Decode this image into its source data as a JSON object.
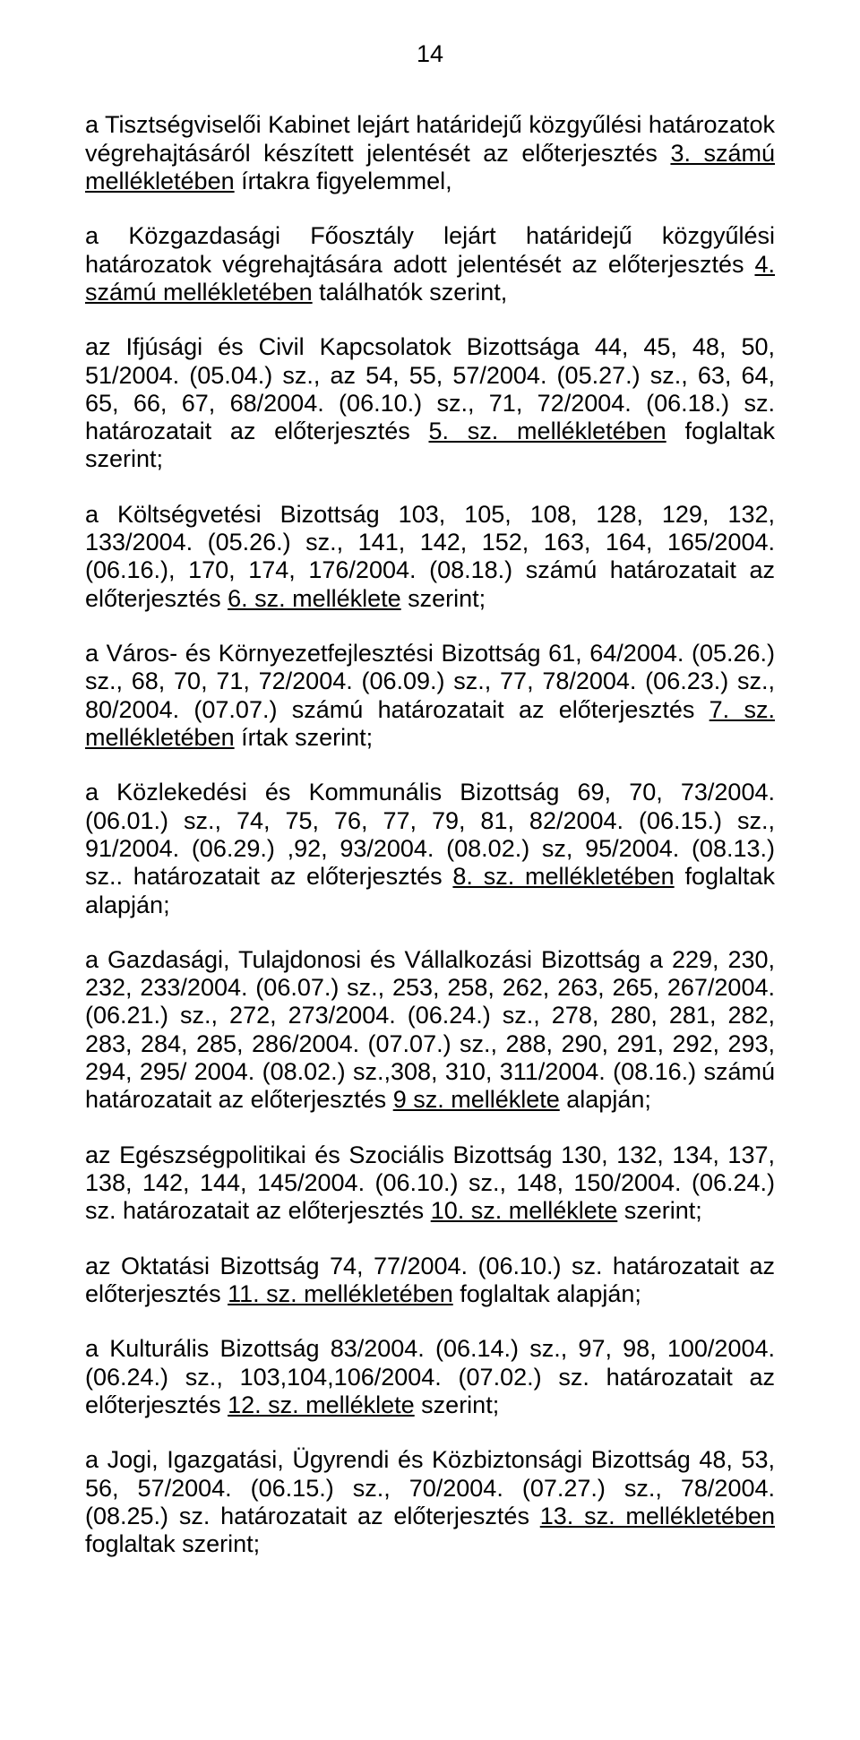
{
  "page_number": "14",
  "paragraphs": {
    "p1": {
      "t1": "a Tisztségviselői Kabinet lejárt határidejű közgyűlési határozatok végrehajtásáról készített jelentését az előterjesztés ",
      "u1": "3. számú mellékletében",
      "t2": " írtakra figyelemmel,"
    },
    "p2": {
      "t1": "a Közgazdasági Főosztály lejárt határidejű közgyűlési határozatok végrehajtására adott jelentését az előterjesztés ",
      "u1": "4. számú mellékletében",
      "t2": " találhatók szerint,"
    },
    "p3": {
      "t1": "az Ifjúsági és Civil Kapcsolatok Bizottsága 44, 45, 48, 50, 51/2004. (05.04.) sz., az 54, 55, 57/2004. (05.27.) sz., 63, 64, 65, 66, 67, 68/2004. (06.10.) sz., 71, 72/2004. (06.18.) sz. határozatait az előterjesztés ",
      "u1": "5. sz. mellékletében",
      "t2": " foglaltak szerint;"
    },
    "p4": {
      "t1": "a Költségvetési Bizottság 103, 105, 108, 128, 129, 132, 133/2004. (05.26.) sz., 141, 142, 152, 163, 164, 165/2004. (06.16.), 170, 174, 176/2004. (08.18.) számú határozatait az előterjesztés ",
      "u1": "6. sz. melléklete",
      "t2": " szerint;"
    },
    "p5": {
      "t1": "a Város- és Környezetfejlesztési Bizottság 61, 64/2004. (05.26.) sz., 68, 70, 71, 72/2004. (06.09.) sz., 77, 78/2004. (06.23.) sz., 80/2004. (07.07.) számú határozatait az előterjesztés ",
      "u1": "7. sz. mellékletében",
      "t2": " írtak szerint;"
    },
    "p6": {
      "t1": "a Közlekedési és Kommunális Bizottság 69, 70, 73/2004. (06.01.) sz., 74, 75, 76, 77, 79, 81, 82/2004. (06.15.) sz., 91/2004. (06.29.) ,92, 93/2004. (08.02.) sz, 95/2004. (08.13.) sz.. határozatait az előterjesztés ",
      "u1": "8. sz. mellékletében",
      "t2": " foglaltak alapján;"
    },
    "p7": {
      "t1": "a Gazdasági, Tulajdonosi és Vállalkozási Bizottság a 229, 230, 232, 233/2004. (06.07.) sz., 253, 258, 262, 263, 265, 267/2004. (06.21.) sz., 272, 273/2004. (06.24.) sz., 278, 280, 281, 282, 283, 284, 285, 286/2004. (07.07.) sz., 288, 290, 291, 292, 293, 294, 295/ 2004. (08.02.) sz.,308, 310, 311/2004. (08.16.) számú határozatait az előterjesztés ",
      "u1": "9 sz. melléklete",
      "t2": " alapján;"
    },
    "p8": {
      "t1": "az Egészségpolitikai és Szociális Bizottság 130, 132, 134, 137, 138, 142, 144, 145/2004. (06.10.) sz., 148, 150/2004. (06.24.) sz. határozatait az előterjesztés ",
      "u1": "10. sz. melléklete",
      "t2": " szerint;"
    },
    "p9": {
      "t1": "az Oktatási Bizottság 74, 77/2004. (06.10.) sz. határozatait az előterjesztés ",
      "u1": "11. sz. mellékletében",
      "t2": " foglaltak alapján;"
    },
    "p10": {
      "t1": "a Kulturális Bizottság 83/2004. (06.14.) sz., 97, 98, 100/2004. (06.24.) sz., 103,104,106/2004. (07.02.) sz. határozatait az előterjesztés ",
      "u1": "12. sz. melléklete",
      "t2": " szerint;"
    },
    "p11": {
      "t1": "a Jogi, Igazgatási, Ügyrendi és Közbiztonsági Bizottság 48, 53, 56, 57/2004. (06.15.) sz., 70/2004. (07.27.) sz., 78/2004. (08.25.) sz. határozatait az előterjesztés ",
      "u1": "13. sz. mellékletében",
      "t2": " foglaltak szerint;"
    }
  }
}
